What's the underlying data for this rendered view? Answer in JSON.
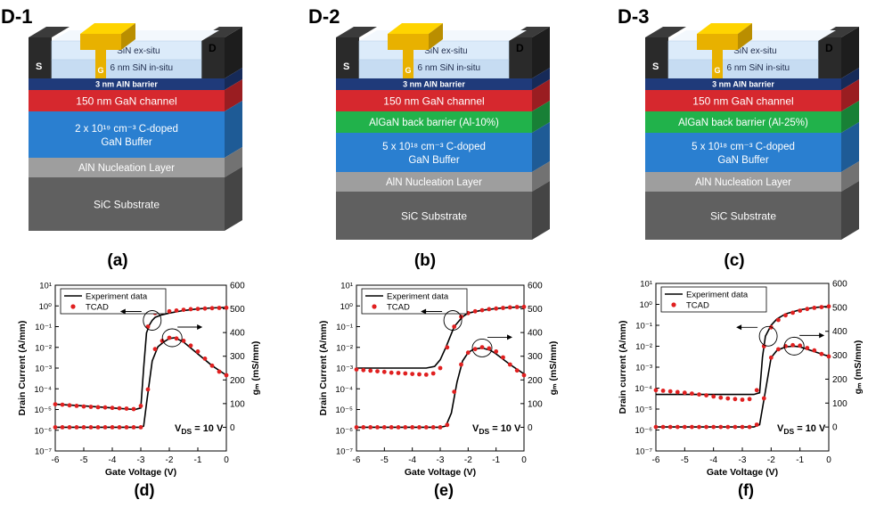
{
  "devices": [
    {
      "title": "D-1",
      "panel": "(a)",
      "gate_label": "G",
      "source_label": "S",
      "drain_label": "D",
      "passivation_ex": "SiN ex-situ",
      "passivation_in": "6 nm SiN in-situ",
      "barrier": "3 nm AlN barrier",
      "channel": "150 nm GaN channel",
      "back_barrier": "",
      "buffer_line1": "2 x 10¹⁹ cm⁻³ C-doped",
      "buffer_line2": "GaN Buffer",
      "nucleation": "AlN Nucleation Layer",
      "substrate": "SiC Substrate"
    },
    {
      "title": "D-2",
      "panel": "(b)",
      "gate_label": "G",
      "source_label": "S",
      "drain_label": "D",
      "passivation_ex": "SiN ex-situ",
      "passivation_in": "6 nm SiN in-situ",
      "barrier": "3 nm AlN barrier",
      "channel": "150 nm GaN channel",
      "back_barrier": "AlGaN back barrier (Al-10%)",
      "buffer_line1": "5 x 10¹⁸ cm⁻³ C-doped",
      "buffer_line2": "GaN Buffer",
      "nucleation": "AlN Nucleation Layer",
      "substrate": "SiC Substrate"
    },
    {
      "title": "D-3",
      "panel": "(c)",
      "gate_label": "G",
      "source_label": "S",
      "drain_label": "D",
      "passivation_ex": "SiN ex-situ",
      "passivation_in": "6 nm SiN in-situ",
      "barrier": "3 nm AlN barrier",
      "channel": "150 nm GaN channel",
      "back_barrier": "AlGaN back barrier (Al-25%)",
      "buffer_line1": "5 x 10¹⁸ cm⁻³ C-doped",
      "buffer_line2": "GaN Buffer",
      "nucleation": "AlN Nucleation Layer",
      "substrate": "SiC Substrate"
    }
  ],
  "colors": {
    "passivation": "#dcebfa",
    "barrier": "#1f3a7a",
    "channel": "#d6282e",
    "back_barrier": "#21b24b",
    "buffer": "#2a7fd0",
    "nucleation": "#9e9e9e",
    "substrate": "#606060",
    "contact": "#2a2a2a",
    "gate": "#e8b100",
    "experiment": "#000000",
    "tcad": "#e02020"
  },
  "chart_data": [
    {
      "type": "line",
      "panel": "(d)",
      "xlabel": "Gate Voltage (V)",
      "ylabel": "Drain Current (A/mm)",
      "y2label": "gₘ (mS/mm)",
      "annotation": "V_DS = 10 V",
      "xlim": [
        -6,
        0
      ],
      "x_ticks": [
        "-6",
        "-5",
        "-4",
        "-3",
        "-2",
        "-1",
        "0"
      ],
      "ylim_log10": [
        -7,
        1
      ],
      "y_ticks": [
        "10⁻⁷",
        "10⁻⁶",
        "10⁻⁵",
        "10⁻⁴",
        "10⁻³",
        "10⁻²",
        "10⁻¹",
        "10⁰",
        "10¹"
      ],
      "y2lim": [
        -100,
        600
      ],
      "y2_ticks": [
        "0",
        "100",
        "200",
        "300",
        "400",
        "500",
        "600"
      ],
      "legend": [
        "Experiment data",
        "TCAD"
      ],
      "series": [
        {
          "name": "Experiment data",
          "axis": "left",
          "style": "line",
          "x": [
            -6,
            -5,
            -4,
            -3.2,
            -3.0,
            -2.9,
            -2.8,
            -2.7,
            -2.6,
            -2.5,
            -2.3,
            -2.0,
            -1.5,
            -1.0,
            -0.5,
            0
          ],
          "y": [
            1.8e-05,
            1.5e-05,
            1.2e-05,
            1e-05,
            1.2e-05,
            0.001,
            0.05,
            0.12,
            0.2,
            0.28,
            0.36,
            0.45,
            0.6,
            0.72,
            0.8,
            0.85
          ]
        },
        {
          "name": "TCAD",
          "axis": "left",
          "style": "points",
          "x": [
            -6,
            -5.75,
            -5.5,
            -5.25,
            -5,
            -4.75,
            -4.5,
            -4.25,
            -4,
            -3.75,
            -3.5,
            -3.25,
            -3,
            -2.75,
            -2.5,
            -2.25,
            -2,
            -1.75,
            -1.5,
            -1.25,
            -1,
            -0.75,
            -0.5,
            -0.25,
            0
          ],
          "y": [
            1.8e-05,
            1.7e-05,
            1.6e-05,
            1.5e-05,
            1.4e-05,
            1.35e-05,
            1.3e-05,
            1.25e-05,
            1.2e-05,
            1.15e-05,
            1.1e-05,
            1.05e-05,
            1.5e-05,
            0.1,
            0.45,
            0.5,
            0.55,
            0.6,
            0.65,
            0.7,
            0.72,
            0.75,
            0.78,
            0.8,
            0.82
          ]
        },
        {
          "name": "Experiment data",
          "axis": "right",
          "style": "line",
          "x": [
            -6,
            -5,
            -4,
            -3.0,
            -2.9,
            -2.8,
            -2.6,
            -2.4,
            -2.2,
            -2.0,
            -1.8,
            -1.5,
            -1.2,
            -1.0,
            -0.5,
            0
          ],
          "y": [
            0,
            0,
            0,
            0,
            5,
            100,
            280,
            340,
            360,
            375,
            378,
            360,
            330,
            310,
            260,
            220
          ]
        },
        {
          "name": "TCAD",
          "axis": "right",
          "style": "points",
          "x": [
            -6,
            -5.75,
            -5.5,
            -5.25,
            -5,
            -4.75,
            -4.5,
            -4.25,
            -4,
            -3.75,
            -3.5,
            -3.25,
            -3,
            -2.75,
            -2.5,
            -2.25,
            -2,
            -1.75,
            -1.5,
            -1.25,
            -1,
            -0.75,
            -0.5,
            -0.25,
            0
          ],
          "y": [
            0,
            0,
            0,
            0,
            0,
            0,
            0,
            0,
            0,
            0,
            0,
            0,
            0,
            160,
            330,
            365,
            378,
            375,
            365,
            345,
            320,
            290,
            260,
            235,
            220
          ]
        }
      ]
    },
    {
      "type": "line",
      "panel": "(e)",
      "xlabel": "Gate Voltage (V)",
      "ylabel": "Drain Current (A/mm)",
      "y2label": "gₘ (mS/mm)",
      "annotation": "V_DS = 10 V",
      "xlim": [
        -6,
        0
      ],
      "x_ticks": [
        "-6",
        "-5",
        "-4",
        "-3",
        "-2",
        "-1",
        "0"
      ],
      "ylim_log10": [
        -7,
        1
      ],
      "y_ticks": [
        "10⁻⁷",
        "10⁻⁶",
        "10⁻⁵",
        "10⁻⁴",
        "10⁻³",
        "10⁻²",
        "10⁻¹",
        "10⁰",
        "10¹"
      ],
      "y2lim": [
        -100,
        600
      ],
      "y2_ticks": [
        "0",
        "100",
        "200",
        "300",
        "400",
        "500",
        "600"
      ],
      "legend": [
        "Experiment data",
        "TCAD"
      ],
      "series": [
        {
          "name": "Experiment data",
          "axis": "left",
          "style": "line",
          "x": [
            -6,
            -5,
            -4,
            -3.5,
            -3.2,
            -3.0,
            -2.8,
            -2.5,
            -2.2,
            -2.0,
            -1.5,
            -1.0,
            -0.5,
            0
          ],
          "y": [
            0.001,
            0.001,
            0.001,
            0.001,
            0.0012,
            0.0025,
            0.01,
            0.1,
            0.3,
            0.45,
            0.62,
            0.75,
            0.85,
            0.9
          ]
        },
        {
          "name": "TCAD",
          "axis": "left",
          "style": "points",
          "x": [
            -6,
            -5.75,
            -5.5,
            -5.25,
            -5,
            -4.75,
            -4.5,
            -4.25,
            -4,
            -3.75,
            -3.5,
            -3.25,
            -3,
            -2.75,
            -2.5,
            -2.25,
            -2,
            -1.75,
            -1.5,
            -1.25,
            -1,
            -0.75,
            -0.5,
            -0.25,
            0
          ],
          "y": [
            0.00085,
            0.0008,
            0.00075,
            0.0007,
            0.00065,
            0.0006,
            0.00058,
            0.00055,
            0.00052,
            0.0005,
            0.00048,
            0.00055,
            0.001,
            0.01,
            0.1,
            0.3,
            0.45,
            0.55,
            0.62,
            0.7,
            0.75,
            0.8,
            0.85,
            0.88,
            0.9
          ]
        },
        {
          "name": "Experiment data",
          "axis": "right",
          "style": "line",
          "x": [
            -6,
            -5,
            -4,
            -3.0,
            -2.8,
            -2.6,
            -2.4,
            -2.2,
            -2.0,
            -1.8,
            -1.5,
            -1.2,
            -1.0,
            -0.5,
            0
          ],
          "y": [
            0,
            0,
            0,
            0,
            5,
            60,
            190,
            280,
            315,
            330,
            335,
            325,
            310,
            265,
            225
          ]
        },
        {
          "name": "TCAD",
          "axis": "right",
          "style": "points",
          "x": [
            -6,
            -5.75,
            -5.5,
            -5.25,
            -5,
            -4.75,
            -4.5,
            -4.25,
            -4,
            -3.75,
            -3.5,
            -3.25,
            -3,
            -2.75,
            -2.5,
            -2.25,
            -2,
            -1.75,
            -1.5,
            -1.25,
            -1,
            -0.75,
            -0.5,
            -0.25,
            0
          ],
          "y": [
            0,
            0,
            0,
            0,
            0,
            0,
            0,
            0,
            0,
            0,
            0,
            0,
            0,
            10,
            150,
            265,
            315,
            330,
            338,
            333,
            320,
            295,
            265,
            240,
            220
          ]
        }
      ]
    },
    {
      "type": "line",
      "panel": "(f)",
      "xlabel": "Gate Voltage (V)",
      "ylabel": "Drain current (A/mm)",
      "y2label": "gₘ (mS/mm)",
      "annotation": "V_DS = 10 V",
      "xlim": [
        -6,
        0
      ],
      "x_ticks": [
        "-6",
        "-5",
        "-4",
        "-3",
        "-2",
        "-1",
        "0"
      ],
      "ylim_log10": [
        -7,
        1
      ],
      "y_ticks": [
        "10⁻⁷",
        "10⁻⁶",
        "10⁻⁵",
        "10⁻⁴",
        "10⁻³",
        "10⁻²",
        "10⁻¹",
        "10⁰",
        "10¹"
      ],
      "y2lim": [
        -100,
        600
      ],
      "y2_ticks": [
        "0",
        "100",
        "200",
        "300",
        "400",
        "500",
        "600"
      ],
      "legend": [
        "Experiment data",
        "TCAD"
      ],
      "series": [
        {
          "name": "Experiment data",
          "axis": "left",
          "style": "line",
          "x": [
            -6,
            -5,
            -4,
            -3,
            -2.6,
            -2.4,
            -2.3,
            -2.2,
            -2.0,
            -1.8,
            -1.5,
            -1.0,
            -0.5,
            0
          ],
          "y": [
            5e-05,
            5e-05,
            5e-05,
            5e-05,
            5e-05,
            6e-05,
            0.003,
            0.03,
            0.1,
            0.2,
            0.35,
            0.55,
            0.7,
            0.8
          ]
        },
        {
          "name": "TCAD",
          "axis": "left",
          "style": "points",
          "x": [
            -6,
            -5.75,
            -5.5,
            -5.25,
            -5,
            -4.75,
            -4.5,
            -4.25,
            -4,
            -3.75,
            -3.5,
            -3.25,
            -3,
            -2.75,
            -2.5,
            -2.25,
            -2,
            -1.75,
            -1.5,
            -1.25,
            -1,
            -0.75,
            -0.5,
            -0.25,
            0
          ],
          "y": [
            8e-05,
            7.5e-05,
            7e-05,
            6.5e-05,
            6e-05,
            5.5e-05,
            5e-05,
            4.5e-05,
            4e-05,
            3.5e-05,
            3.2e-05,
            3e-05,
            2.8e-05,
            3e-05,
            8e-05,
            0.01,
            0.08,
            0.18,
            0.3,
            0.4,
            0.5,
            0.6,
            0.68,
            0.74,
            0.8
          ]
        },
        {
          "name": "Experiment data",
          "axis": "right",
          "style": "line",
          "x": [
            -6,
            -5,
            -4,
            -2.6,
            -2.4,
            -2.2,
            -2.0,
            -1.8,
            -1.5,
            -1.2,
            -1.0,
            -0.5,
            0
          ],
          "y": [
            0,
            0,
            0,
            0,
            10,
            150,
            290,
            320,
            335,
            338,
            335,
            315,
            295
          ]
        },
        {
          "name": "TCAD",
          "axis": "right",
          "style": "points",
          "x": [
            -6,
            -5.75,
            -5.5,
            -5.25,
            -5,
            -4.75,
            -4.5,
            -4.25,
            -4,
            -3.75,
            -3.5,
            -3.25,
            -3,
            -2.75,
            -2.5,
            -2.25,
            -2,
            -1.75,
            -1.5,
            -1.25,
            -1,
            -0.75,
            -0.5,
            -0.25,
            0
          ],
          "y": [
            0,
            0,
            0,
            0,
            0,
            0,
            0,
            0,
            0,
            0,
            0,
            0,
            0,
            0,
            10,
            120,
            290,
            325,
            338,
            342,
            340,
            330,
            320,
            305,
            295
          ]
        }
      ]
    }
  ]
}
